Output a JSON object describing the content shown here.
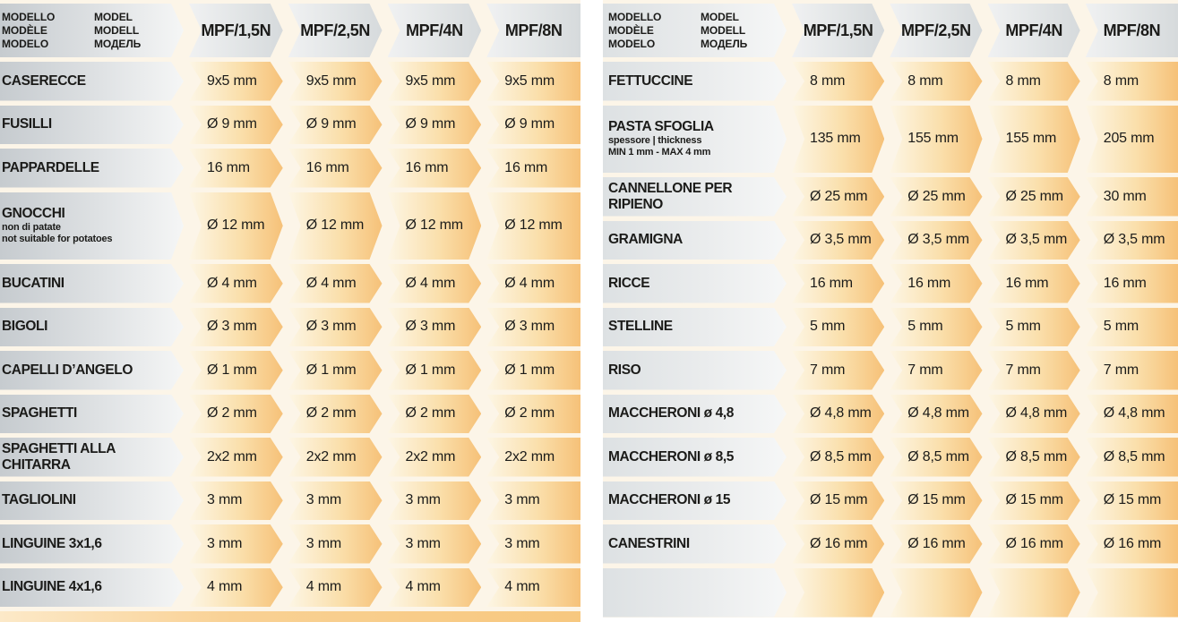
{
  "header": {
    "col1_lines": [
      "MODELLO",
      "MODÈLE",
      "MODELO"
    ],
    "col2_lines": [
      "MODEL",
      "MODELL",
      "МОДЕЛЬ"
    ]
  },
  "models": [
    "MPF/1,5N",
    "MPF/2,5N",
    "MPF/4N",
    "MPF/8N"
  ],
  "left_table": {
    "rows": [
      {
        "label": "CASERECCE",
        "sub": [],
        "values": [
          "9x5 mm",
          "9x5 mm",
          "9x5 mm",
          "9x5 mm"
        ]
      },
      {
        "label": "FUSILLI",
        "sub": [],
        "values": [
          "Ø 9 mm",
          "Ø 9 mm",
          "Ø 9 mm",
          "Ø 9 mm"
        ]
      },
      {
        "label": "PAPPARDELLE",
        "sub": [],
        "values": [
          "16 mm",
          "16 mm",
          "16 mm",
          "16 mm"
        ]
      },
      {
        "label": "GNOCCHI",
        "sub": [
          "non di patate",
          "not suitable for potatoes"
        ],
        "values": [
          "Ø 12 mm",
          "Ø 12 mm",
          "Ø 12 mm",
          "Ø 12 mm"
        ]
      },
      {
        "label": "BUCATINI",
        "sub": [],
        "values": [
          "Ø 4 mm",
          "Ø 4 mm",
          "Ø 4 mm",
          "Ø 4 mm"
        ]
      },
      {
        "label": "BIGOLI",
        "sub": [],
        "values": [
          "Ø 3 mm",
          "Ø 3 mm",
          "Ø 3 mm",
          "Ø 3 mm"
        ]
      },
      {
        "label": "CAPELLI D’ANGELO",
        "sub": [],
        "values": [
          "Ø 1 mm",
          "Ø 1 mm",
          "Ø 1 mm",
          "Ø 1 mm"
        ]
      },
      {
        "label": "SPAGHETTI",
        "sub": [],
        "values": [
          "Ø 2 mm",
          "Ø 2 mm",
          "Ø 2 mm",
          "Ø 2 mm"
        ]
      },
      {
        "label": "SPAGHETTI ALLA CHITARRA",
        "sub": [],
        "values": [
          "2x2 mm",
          "2x2 mm",
          "2x2 mm",
          "2x2 mm"
        ]
      },
      {
        "label": "TAGLIOLINI",
        "sub": [],
        "values": [
          "3 mm",
          "3 mm",
          "3 mm",
          "3 mm"
        ]
      },
      {
        "label": "LINGUINE 3x1,6",
        "sub": [],
        "values": [
          "3 mm",
          "3 mm",
          "3 mm",
          "3 mm"
        ]
      },
      {
        "label": "LINGUINE 4x1,6",
        "sub": [],
        "values": [
          "4 mm",
          "4 mm",
          "4 mm",
          "4 mm"
        ]
      }
    ]
  },
  "right_table": {
    "rows": [
      {
        "label": "FETTUCCINE",
        "sub": [],
        "values": [
          "8 mm",
          "8 mm",
          "8 mm",
          "8 mm"
        ]
      },
      {
        "label": "PASTA SFOGLIA",
        "sub": [
          "spessore | thickness",
          "MIN 1 mm - MAX 4 mm"
        ],
        "values": [
          "135 mm",
          "155 mm",
          "155 mm",
          "205 mm"
        ]
      },
      {
        "label": "CANNELLONE PER RIPIENO",
        "sub": [],
        "values": [
          "Ø 25 mm",
          "Ø 25 mm",
          "Ø 25 mm",
          "30 mm"
        ]
      },
      {
        "label": "GRAMIGNA",
        "sub": [],
        "values": [
          "Ø 3,5 mm",
          "Ø 3,5 mm",
          "Ø 3,5 mm",
          "Ø 3,5 mm"
        ]
      },
      {
        "label": "RICCE",
        "sub": [],
        "values": [
          "16 mm",
          "16 mm",
          "16 mm",
          "16 mm"
        ]
      },
      {
        "label": "STELLINE",
        "sub": [],
        "values": [
          "5 mm",
          "5 mm",
          "5 mm",
          "5 mm"
        ]
      },
      {
        "label": "RISO",
        "sub": [],
        "values": [
          "7 mm",
          "7 mm",
          "7 mm",
          "7 mm"
        ]
      },
      {
        "label": "MACCHERONI ø 4,8",
        "sub": [],
        "values": [
          "Ø 4,8 mm",
          "Ø 4,8 mm",
          "Ø 4,8 mm",
          "Ø 4,8 mm"
        ]
      },
      {
        "label": "MACCHERONI ø 8,5",
        "sub": [],
        "values": [
          "Ø 8,5 mm",
          "Ø 8,5 mm",
          "Ø 8,5 mm",
          "Ø 8,5 mm"
        ]
      },
      {
        "label": "MACCHERONI ø 15",
        "sub": [],
        "values": [
          "Ø 15 mm",
          "Ø 15 mm",
          "Ø 15 mm",
          "Ø 15 mm"
        ]
      },
      {
        "label": "CANESTRINI",
        "sub": [],
        "values": [
          "Ø 16 mm",
          "Ø 16 mm",
          "Ø 16 mm",
          "Ø 16 mm"
        ]
      },
      {
        "label": "",
        "sub": [],
        "values": [
          "",
          "",
          "",
          ""
        ]
      }
    ]
  },
  "colors": {
    "accent_orange": "#f6c178",
    "pale_orange": "#fdf6e5",
    "label_gray": "#c6cbcf",
    "header_gray": "#d6dadc",
    "text": "#1b1b19",
    "gap_cream": "#fcf5e8"
  }
}
